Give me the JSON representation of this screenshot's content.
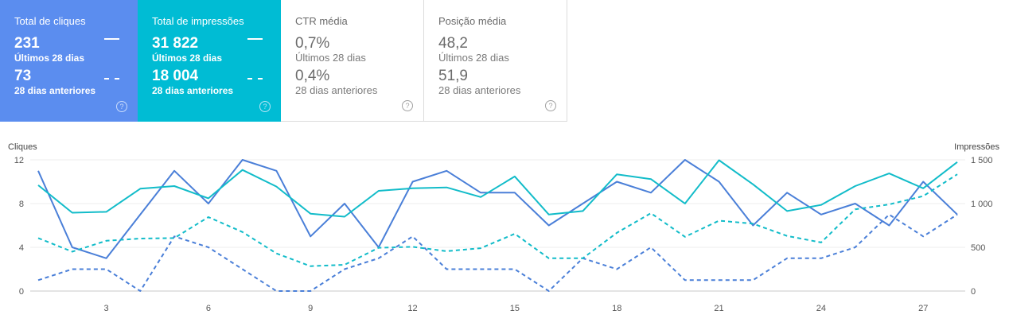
{
  "cards": [
    {
      "title": "Total de cliques",
      "current_value": "231",
      "current_label": "Últimos 28 dias",
      "previous_value": "73",
      "previous_label": "28 dias anteriores",
      "selected": true,
      "color": "#5b8def"
    },
    {
      "title": "Total de impressões",
      "current_value": "31 822",
      "current_label": "Últimos 28 dias",
      "previous_value": "18 004",
      "previous_label": "28 dias anteriores",
      "selected": true,
      "color": "#00bcd4"
    },
    {
      "title": "CTR média",
      "current_value": "0,7%",
      "current_label": "Últimos 28 dias",
      "previous_value": "0,4%",
      "previous_label": "28 dias anteriores",
      "selected": false
    },
    {
      "title": "Posição média",
      "current_value": "48,2",
      "current_label": "Últimos 28 dias",
      "previous_value": "51,9",
      "previous_label": "28 dias anteriores",
      "selected": false
    }
  ],
  "help_glyph": "?",
  "chart_data": {
    "type": "line",
    "ylabel_left": "Cliques",
    "ylabel_right": "Impressões",
    "x": [
      1,
      2,
      3,
      4,
      5,
      6,
      7,
      8,
      9,
      10,
      11,
      12,
      13,
      14,
      15,
      16,
      17,
      18,
      19,
      20,
      21,
      22,
      23,
      24,
      25,
      26,
      27,
      28
    ],
    "x_ticks": [
      3,
      6,
      9,
      12,
      15,
      18,
      21,
      24,
      27
    ],
    "y_left_ticks": [
      0,
      4,
      8,
      12
    ],
    "y_left_range": [
      0,
      12
    ],
    "y_right_ticks": [
      0,
      500,
      1000,
      1500
    ],
    "y_right_tick_labels": [
      "0",
      "500",
      "1 000",
      "1 500"
    ],
    "y_right_range": [
      0,
      1500
    ],
    "grid": true,
    "series": [
      {
        "name": "Cliques",
        "period": "Últimos 28 dias",
        "axis": "left",
        "style": "solid",
        "color": "#4a7fd8",
        "values": [
          11,
          4,
          3,
          7,
          11,
          8,
          12,
          11,
          5,
          8,
          4,
          10,
          11,
          9,
          9,
          6,
          8,
          10,
          9,
          12,
          10,
          6,
          9,
          7,
          8,
          6,
          10,
          7
        ]
      },
      {
        "name": "Cliques",
        "period": "28 dias anteriores",
        "axis": "left",
        "style": "dashed",
        "color": "#4a7fd8",
        "values": [
          1,
          2,
          2,
          0,
          5,
          4,
          2,
          0,
          0,
          2,
          3,
          5,
          2,
          2,
          2,
          0,
          3,
          2,
          4,
          1,
          1,
          1,
          3,
          3,
          4,
          7,
          5,
          7
        ]
      },
      {
        "name": "Impressões",
        "period": "Últimos 28 dias",
        "axis": "right",
        "style": "solid",
        "color": "#12bcc9",
        "values": [
          1210,
          895,
          905,
          1170,
          1200,
          1060,
          1385,
          1195,
          885,
          850,
          1145,
          1175,
          1185,
          1075,
          1310,
          875,
          915,
          1335,
          1280,
          1000,
          1495,
          1220,
          915,
          985,
          1200,
          1345,
          1175,
          1475
        ]
      },
      {
        "name": "Impressões",
        "period": "28 dias anteriores",
        "axis": "right",
        "style": "dashed",
        "color": "#12bcc9",
        "values": [
          605,
          450,
          575,
          600,
          605,
          845,
          675,
          430,
          285,
          300,
          495,
          505,
          455,
          490,
          655,
          375,
          375,
          665,
          890,
          620,
          805,
          770,
          630,
          555,
          935,
          990,
          1085,
          1335
        ]
      }
    ]
  }
}
